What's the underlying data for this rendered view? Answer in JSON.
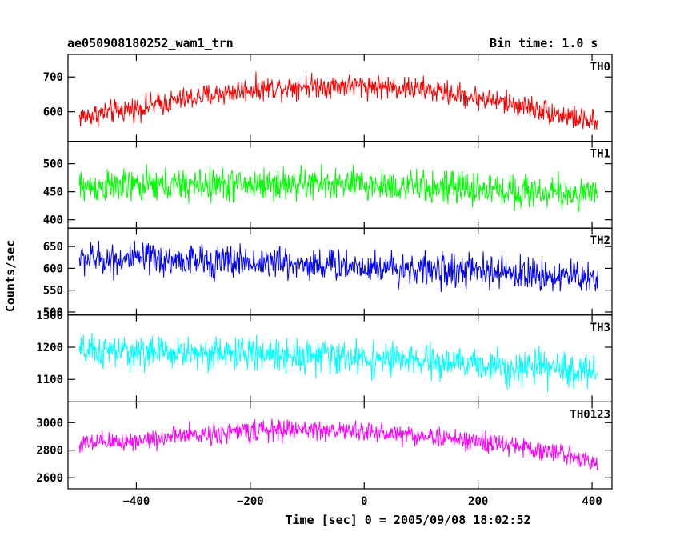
{
  "header": {
    "file_label": "ae050908180252_wam1_trn",
    "bin_time": "Bin time: 1.0 s"
  },
  "chart_data": {
    "type": "line",
    "xlabel": "Time [sec] 0 = 2005/09/08 18:02:52",
    "ylabel": "Counts/sec",
    "xlim": [
      -520,
      435
    ],
    "x_range": [
      -500,
      410
    ],
    "xticks": [
      -400,
      -200,
      0,
      200,
      400
    ],
    "bin_time_sec": 1.0,
    "panels": [
      {
        "name": "TH0",
        "color": "#ff0000",
        "ylim": [
          515,
          765
        ],
        "yticks": [
          600,
          700
        ],
        "trend_x": [
          -500,
          -400,
          -300,
          -200,
          -100,
          0,
          100,
          200,
          300,
          400,
          410
        ],
        "trend_y": [
          585,
          610,
          640,
          665,
          675,
          675,
          665,
          640,
          610,
          570,
          560
        ],
        "noise": 25
      },
      {
        "name": "TH1",
        "color": "#00ff00",
        "ylim": [
          385,
          540
        ],
        "yticks": [
          400,
          450,
          500
        ],
        "trend_x": [
          -500,
          -400,
          -300,
          -200,
          -100,
          0,
          100,
          200,
          300,
          400,
          410
        ],
        "trend_y": [
          458,
          460,
          462,
          463,
          464,
          462,
          458,
          455,
          450,
          445,
          443
        ],
        "noise": 22
      },
      {
        "name": "TH2",
        "color": "#0000ff",
        "ylim": [
          493,
          692
        ],
        "yticks": [
          500,
          550,
          600,
          650
        ],
        "trend_x": [
          -500,
          -400,
          -300,
          -200,
          -100,
          0,
          100,
          200,
          300,
          400,
          410
        ],
        "trend_y": [
          622,
          620,
          617,
          614,
          610,
          605,
          598,
          592,
          586,
          580,
          578
        ],
        "noise": 28
      },
      {
        "name": "TH3",
        "color": "#00ffff",
        "ylim": [
          1030,
          1300
        ],
        "yticks": [
          1100,
          1200,
          1300
        ],
        "trend_x": [
          -500,
          -400,
          -300,
          -200,
          -100,
          0,
          100,
          200,
          300,
          400,
          410
        ],
        "trend_y": [
          1185,
          1185,
          1182,
          1180,
          1175,
          1165,
          1155,
          1145,
          1135,
          1125,
          1122
        ],
        "noise": 38
      },
      {
        "name": "TH0123",
        "color": "#ff00ff",
        "ylim": [
          2520,
          3150
        ],
        "yticks": [
          2600,
          2800,
          3000
        ],
        "trend_x": [
          -500,
          -400,
          -300,
          -200,
          -100,
          0,
          100,
          200,
          300,
          400,
          410
        ],
        "trend_y": [
          2840,
          2870,
          2910,
          2940,
          2950,
          2935,
          2905,
          2860,
          2810,
          2730,
          2700
        ],
        "noise": 55
      }
    ]
  }
}
